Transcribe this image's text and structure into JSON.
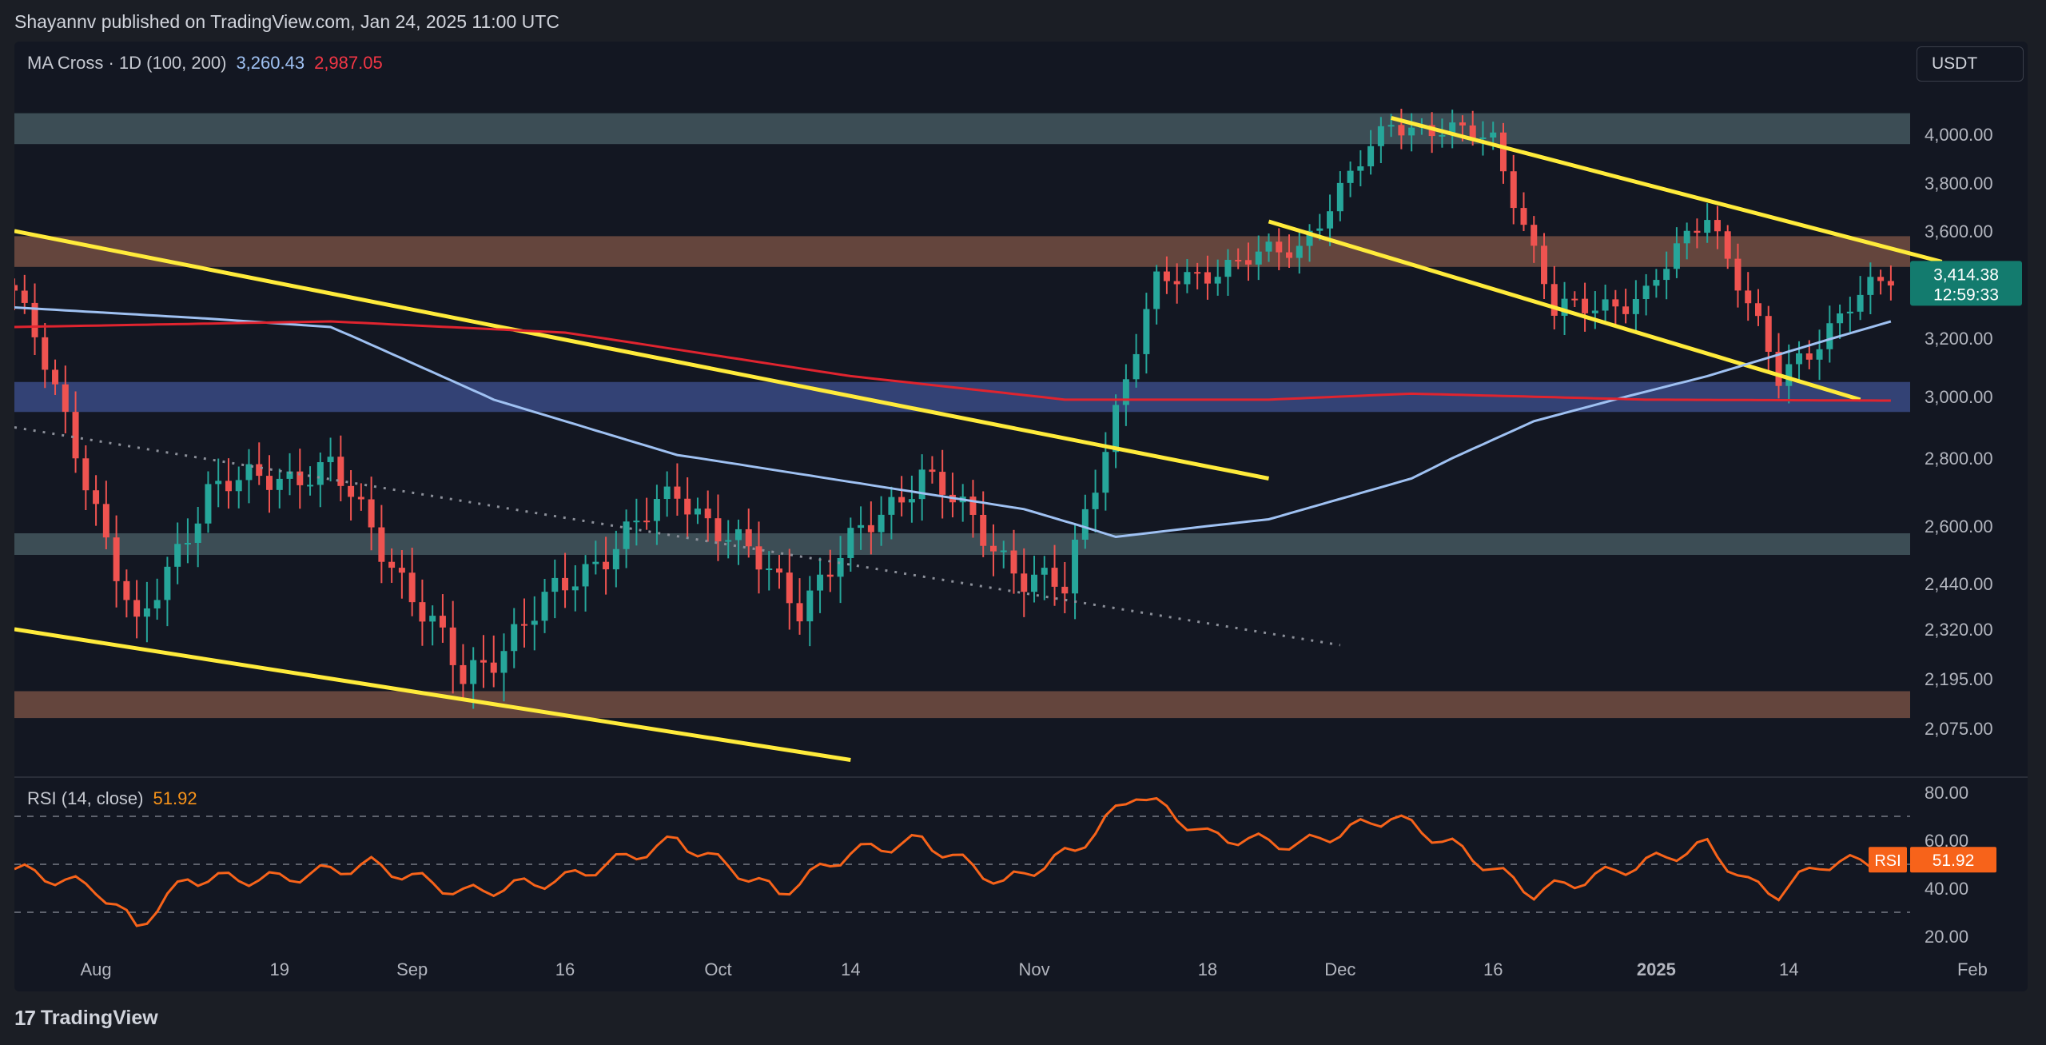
{
  "header": {
    "published": "Shayannv published on TradingView.com, Jan 24, 2025 11:00 UTC"
  },
  "legend": {
    "indicator": "MA Cross · 1D (100, 200)",
    "ma100": "3,260.43",
    "ma200": "2,987.05"
  },
  "currency_button": "USDT",
  "price_label": {
    "price": "3,414.38",
    "countdown": "12:59:33"
  },
  "rsi": {
    "label": "RSI (14, close)",
    "value": "51.92",
    "tag": "RSI"
  },
  "footer": {
    "brand": "TradingView",
    "logo_glyph": "17"
  },
  "colors": {
    "up": "#26a69a",
    "down": "#ef5350",
    "ma100": "#9fc1f2",
    "ma200": "#e0242f",
    "trendline": "#ffeb3b",
    "rsi": "#f7631a",
    "price_tag": "#137b6e"
  },
  "chart_data": [
    {
      "type": "candlestick",
      "title": "MA Cross · 1D (100, 200)",
      "y_axis_ticks": [
        "4,000.00",
        "3,800.00",
        "3,600.00",
        "3,200.00",
        "3,000.00",
        "2,800.00",
        "2,600.00",
        "2,440.00",
        "2,320.00",
        "2,195.00",
        "2,075.00"
      ],
      "y_tick_values": [
        4000,
        3800,
        3600,
        3200,
        3000,
        2800,
        2600,
        2440,
        2320,
        2195,
        2075
      ],
      "x_axis_ticks": [
        "Aug",
        "19",
        "Sep",
        "16",
        "Oct",
        "14",
        "Nov",
        "18",
        "Dec",
        "16",
        "2025",
        "14",
        "Feb"
      ],
      "x_tick_dates": [
        "2024-08-01",
        "2024-08-19",
        "2024-09-01",
        "2024-09-16",
        "2024-10-01",
        "2024-10-14",
        "2024-11-01",
        "2024-11-18",
        "2024-12-01",
        "2024-12-16",
        "2025-01-01",
        "2025-01-14",
        "2025-02-01"
      ],
      "x_range": [
        "2024-07-24",
        "2025-02-05"
      ],
      "last_price": 3414.38,
      "series": [
        {
          "name": "Close (approx.)",
          "dates": [
            "2024-07-24",
            "2024-08-05",
            "2024-08-12",
            "2024-08-24",
            "2024-09-06",
            "2024-09-27",
            "2024-10-09",
            "2024-10-21",
            "2024-10-31",
            "2024-11-04",
            "2024-11-13",
            "2024-11-27",
            "2024-12-06",
            "2024-12-16",
            "2024-12-22",
            "2024-12-31",
            "2025-01-06",
            "2025-01-13",
            "2025-01-20",
            "2025-01-24"
          ],
          "values": [
            3370,
            2300,
            2710,
            2770,
            2190,
            2700,
            2390,
            2760,
            2460,
            2420,
            3390,
            3540,
            4050,
            3980,
            3290,
            3350,
            3680,
            3050,
            3320,
            3414
          ]
        },
        {
          "name": "MA 100",
          "dates": [
            "2024-07-24",
            "2024-08-12",
            "2024-08-24",
            "2024-09-09",
            "2024-09-27",
            "2024-10-14",
            "2024-10-31",
            "2024-11-09",
            "2024-11-24",
            "2024-12-08",
            "2024-12-20",
            "2025-01-06",
            "2025-01-24"
          ],
          "values": [
            3310,
            3270,
            3240,
            2990,
            2810,
            2730,
            2650,
            2570,
            2620,
            2740,
            2920,
            3070,
            3260
          ]
        },
        {
          "name": "MA 200",
          "dates": [
            "2024-07-24",
            "2024-08-24",
            "2024-09-16",
            "2024-10-14",
            "2024-11-04",
            "2024-11-24",
            "2024-12-08",
            "2024-12-31",
            "2025-01-24"
          ],
          "values": [
            3240,
            3260,
            3220,
            3070,
            2990,
            2990,
            3010,
            2990,
            2987
          ]
        }
      ],
      "zones": [
        {
          "name": "resistance-top",
          "from": 3960,
          "to": 4090
        },
        {
          "name": "supply",
          "from": 3460,
          "to": 3580
        },
        {
          "name": "ma-support",
          "from": 2950,
          "to": 3050
        },
        {
          "name": "support-mid",
          "from": 2520,
          "to": 2580
        },
        {
          "name": "demand",
          "from": 2100,
          "to": 2165
        }
      ],
      "trendlines": [
        {
          "style": "solid",
          "points": [
            [
              "2024-07-24",
              3600
            ],
            [
              "2024-11-24",
              2740
            ]
          ]
        },
        {
          "style": "solid",
          "points": [
            [
              "2024-07-24",
              2320
            ],
            [
              "2024-10-14",
              2020
            ]
          ]
        },
        {
          "style": "solid",
          "points": [
            [
              "2024-12-06",
              4070
            ],
            [
              "2025-01-29",
              3480
            ]
          ]
        },
        {
          "style": "solid",
          "points": [
            [
              "2024-11-24",
              3640
            ],
            [
              "2025-01-21",
              2990
            ]
          ]
        },
        {
          "style": "dotted",
          "points": [
            [
              "2024-07-24",
              2900
            ],
            [
              "2024-12-01",
              2280
            ]
          ]
        }
      ]
    },
    {
      "type": "line",
      "title": "RSI (14, close)",
      "y_axis_ticks": [
        "80.00",
        "60.00",
        "40.00",
        "20.00"
      ],
      "y_tick_values": [
        80,
        60,
        40,
        20
      ],
      "levels": [
        70,
        50,
        30
      ],
      "series": [
        {
          "name": "RSI",
          "dates": [
            "2024-07-24",
            "2024-08-01",
            "2024-08-05",
            "2024-08-10",
            "2024-08-19",
            "2024-08-28",
            "2024-09-06",
            "2024-09-16",
            "2024-09-27",
            "2024-10-07",
            "2024-10-14",
            "2024-10-21",
            "2024-10-29",
            "2024-11-05",
            "2024-11-11",
            "2024-11-18",
            "2024-11-27",
            "2024-12-06",
            "2024-12-12",
            "2024-12-20",
            "2024-12-27",
            "2025-01-06",
            "2025-01-10",
            "2025-01-13",
            "2025-01-17",
            "2025-01-24"
          ],
          "values": [
            48,
            40,
            24,
            44,
            44,
            50,
            38,
            44,
            60,
            38,
            55,
            60,
            42,
            56,
            80,
            62,
            58,
            70,
            58,
            38,
            46,
            58,
            42,
            38,
            50,
            51.92
          ]
        }
      ]
    }
  ]
}
